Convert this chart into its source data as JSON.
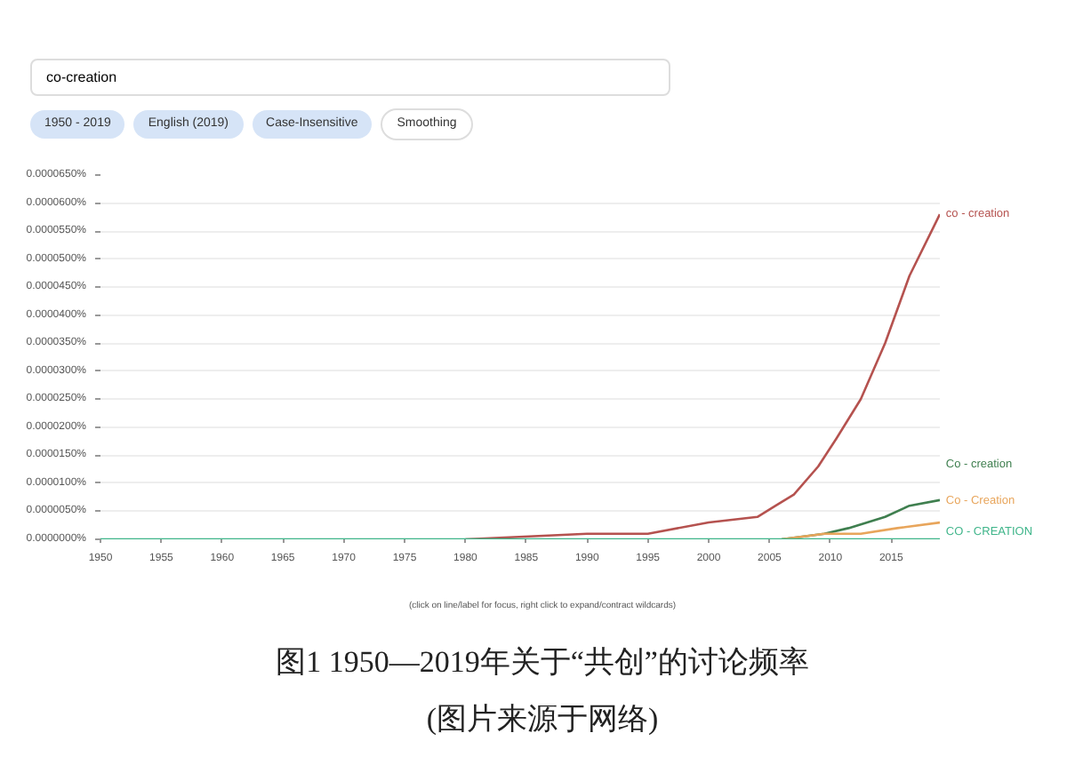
{
  "chart_data": {
    "type": "line",
    "title": "图1 1950—2019年关于“共创”的讨论频率",
    "annotations": [
      "co-creation",
      "1950 - 2019",
      "English (2019)",
      "Case-Insensitive",
      "Smoothing",
      "(click on line/label for focus, right click to expand/contract wildcards)",
      "(图片来源于网络)"
    ],
    "xlim": [
      1950,
      2019
    ],
    "xticks": [
      1950,
      1955,
      1960,
      1965,
      1970,
      1975,
      1980,
      1985,
      1990,
      1995,
      2000,
      2005,
      2010,
      2015
    ],
    "ylim": [
      0,
      6.5e-05
    ],
    "yticks": [
      {
        "value": 0,
        "label": "0.0000000%"
      },
      {
        "value": 5e-06,
        "label": "0.0000050%"
      },
      {
        "value": 1e-05,
        "label": "0.0000100%"
      },
      {
        "value": 1.5e-05,
        "label": "0.0000150%"
      },
      {
        "value": 2e-05,
        "label": "0.0000200%"
      },
      {
        "value": 2.5e-05,
        "label": "0.0000250%"
      },
      {
        "value": 3e-05,
        "label": "0.0000300%"
      },
      {
        "value": 3.5e-05,
        "label": "0.0000350%"
      },
      {
        "value": 4e-05,
        "label": "0.0000400%"
      },
      {
        "value": 4.5e-05,
        "label": "0.0000450%"
      },
      {
        "value": 5e-05,
        "label": "0.0000500%"
      },
      {
        "value": 5.5e-05,
        "label": "0.0000550%"
      },
      {
        "value": 6e-05,
        "label": "0.0000600%"
      },
      {
        "value": 6.5e-05,
        "label": "0.0000650%"
      }
    ],
    "grid": "y",
    "legend": false,
    "marker": "none",
    "line_style": "solid",
    "series": [
      {
        "name": "co - creation",
        "color": "#b5524f",
        "x": [
          1980,
          1990,
          1995,
          2000,
          2004,
          2005.5,
          2007,
          2009,
          2010.5,
          2012.5,
          2014.5,
          2016.5,
          2019
        ],
        "values": [
          0,
          1e-06,
          1e-06,
          3e-06,
          4e-06,
          6e-06,
          8e-06,
          1.3e-05,
          1.8e-05,
          2.5e-05,
          3.5e-05,
          4.7e-05,
          5.8e-05
        ]
      },
      {
        "name": "Co - creation",
        "color": "#3f7f4f",
        "x": [
          2006,
          2009.5,
          2011.5,
          2014.5,
          2016.5,
          2019
        ],
        "values": [
          0,
          1e-06,
          2e-06,
          4e-06,
          6e-06,
          7e-06
        ]
      },
      {
        "name": "Co - Creation",
        "color": "#e8a55b",
        "x": [
          2006,
          2009.5,
          2012.5,
          2015.5,
          2019
        ],
        "values": [
          0,
          1e-06,
          1e-06,
          2e-06,
          3e-06
        ]
      },
      {
        "name": "CO - CREATION",
        "color": "#3fb58a",
        "x": [
          1950,
          2019
        ],
        "values": [
          0,
          0
        ]
      }
    ]
  }
}
